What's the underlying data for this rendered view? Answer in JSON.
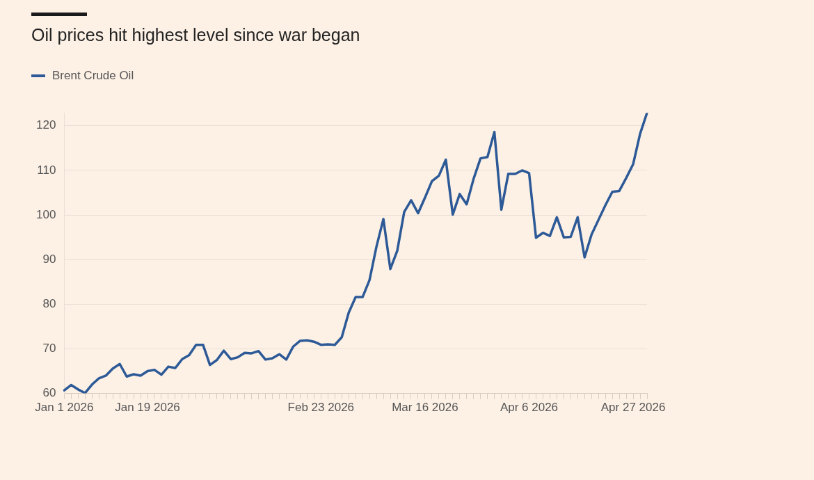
{
  "chart_data": {
    "type": "line",
    "title": "Oil prices hit highest level since war began",
    "categories": [
      "Jan 1 2026",
      null,
      null,
      null,
      null,
      null,
      null,
      null,
      null,
      null,
      null,
      null,
      "Jan 19 2026",
      null,
      null,
      null,
      null,
      null,
      null,
      null,
      null,
      null,
      null,
      null,
      null,
      null,
      null,
      null,
      null,
      null,
      null,
      null,
      null,
      null,
      null,
      null,
      null,
      "Feb 23 2026",
      null,
      null,
      null,
      null,
      null,
      null,
      null,
      null,
      null,
      null,
      null,
      null,
      null,
      null,
      "Mar 16 2026",
      null,
      null,
      null,
      null,
      null,
      null,
      null,
      null,
      null,
      null,
      null,
      null,
      null,
      null,
      "Apr 6 2026",
      null,
      null,
      null,
      null,
      null,
      null,
      null,
      null,
      null,
      null,
      null,
      null,
      null,
      null,
      "Apr 27 2026",
      null,
      null
    ],
    "series": [
      {
        "name": "Brent Crude Oil",
        "color": "#2d5a97",
        "values": [
          60.7,
          61.9,
          60.9,
          60.1,
          62.0,
          63.4,
          64.0,
          65.6,
          66.6,
          63.8,
          64.3,
          64.0,
          65.0,
          65.3,
          64.2,
          66.0,
          65.7,
          67.7,
          68.6,
          70.9,
          70.9,
          66.4,
          67.5,
          69.6,
          67.7,
          68.1,
          69.1,
          69.0,
          69.5,
          67.6,
          67.9,
          68.8,
          67.6,
          70.5,
          71.8,
          71.9,
          71.6,
          70.9,
          71.0,
          70.9,
          72.6,
          78.1,
          81.6,
          81.6,
          85.4,
          92.9,
          99.1,
          87.9,
          92.0,
          100.7,
          103.3,
          100.4,
          103.9,
          107.6,
          108.8,
          112.4,
          100.1,
          104.7,
          102.4,
          108.1,
          112.7,
          113.0,
          118.6,
          101.2,
          109.2,
          109.2,
          110.0,
          109.4,
          94.9,
          96.0,
          95.3,
          99.5,
          95.0,
          95.1,
          99.5,
          90.5,
          95.6,
          98.9,
          102.2,
          105.2,
          105.4,
          108.3,
          111.4,
          118.2,
          122.9
        ]
      }
    ],
    "ylim": [
      60,
      122.9
    ],
    "yticks": [
      60,
      70,
      80,
      90,
      100,
      110,
      120
    ],
    "grid": "y",
    "legend": "top left",
    "marker": "none",
    "line_style": "solid"
  }
}
